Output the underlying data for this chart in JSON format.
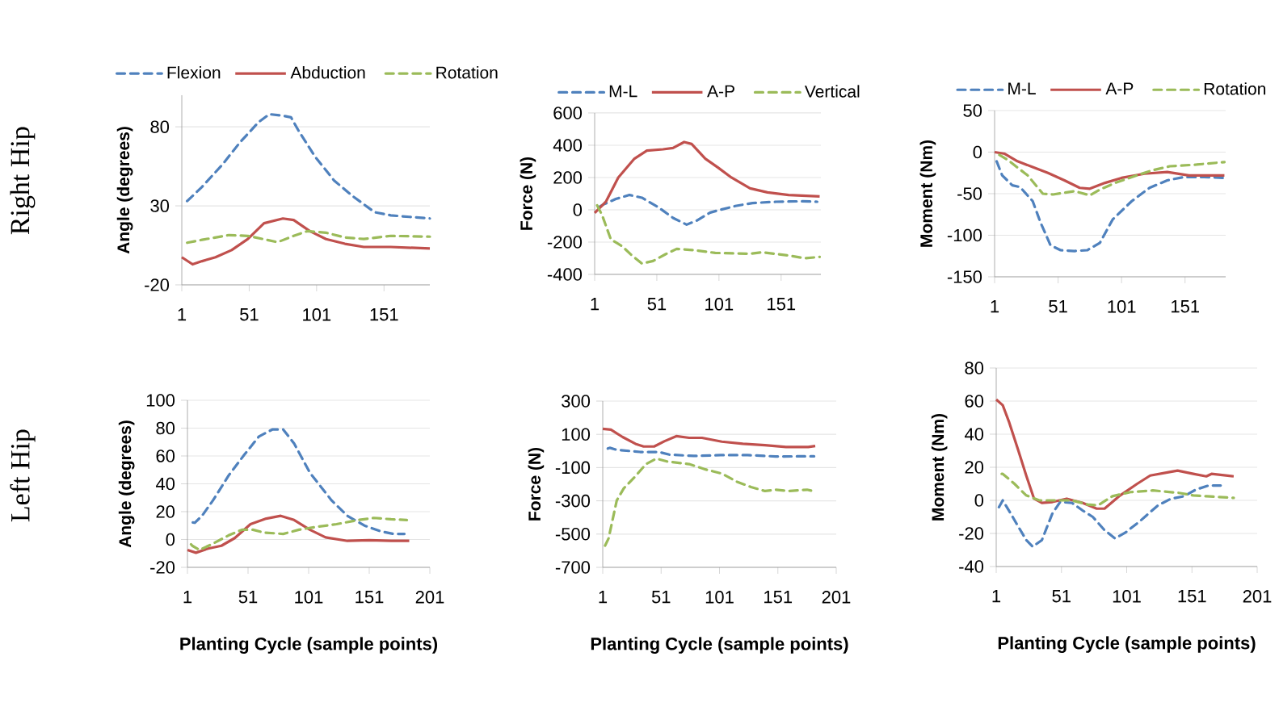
{
  "chart_data": [
    {
      "type": "line",
      "ylabel": "Angle (degrees)",
      "annotations": [
        "Right Hip"
      ],
      "xlim": [
        1,
        185
      ],
      "xticks": [
        1,
        51,
        101,
        151
      ],
      "ylim": [
        -20,
        100
      ],
      "yticks": [
        -20,
        30,
        80
      ],
      "grid": "y",
      "legend": "top",
      "series": [
        {
          "name": "Flexion",
          "color": "#4f81bd",
          "line_style": "dashed",
          "x": [
            1,
            5,
            16,
            31,
            44,
            58,
            66,
            76,
            82,
            88,
            100,
            114,
            128,
            144,
            156,
            170,
            185
          ],
          "values": [
            34,
            33,
            42,
            56,
            70,
            83,
            88,
            87,
            86,
            77,
            61,
            46,
            36,
            26,
            24,
            23,
            22
          ]
        },
        {
          "name": "Abduction",
          "color": "#c0504d",
          "line_style": "solid",
          "x": [
            1,
            9,
            16,
            26,
            38,
            50,
            62,
            76,
            84,
            96,
            108,
            122,
            136,
            156,
            185
          ],
          "values": [
            -2.5,
            -7,
            -5,
            -2.5,
            2,
            9,
            19,
            22,
            21,
            14,
            9,
            6,
            4,
            4,
            3
          ]
        },
        {
          "name": "Rotation",
          "color": "#9bbb59",
          "line_style": "dashed",
          "x": [
            1,
            16,
            36,
            50,
            64,
            72,
            84,
            94,
            108,
            122,
            136,
            156,
            185
          ],
          "values": [
            6,
            8.5,
            11.5,
            11,
            8.5,
            7,
            11,
            14,
            13,
            10,
            9,
            11,
            10.5
          ]
        }
      ]
    },
    {
      "type": "line",
      "ylabel": "Force (N)",
      "xlim": [
        1,
        183
      ],
      "xticks": [
        1,
        51,
        101,
        151
      ],
      "ylim": [
        -400,
        600
      ],
      "yticks": [
        -400,
        -200,
        0,
        200,
        400,
        600
      ],
      "grid": "y",
      "legend": "top",
      "series": [
        {
          "name": "M-L",
          "color": "#4f81bd",
          "line_style": "dashed",
          "x": [
            1,
            8,
            18,
            29,
            39,
            52,
            64,
            75,
            83,
            94,
            102,
            115,
            128,
            147,
            168,
            180
          ],
          "values": [
            0,
            33,
            67,
            92,
            75,
            17,
            -50,
            -92,
            -67,
            -17,
            0,
            25,
            42,
            50,
            53,
            50
          ]
        },
        {
          "name": "A-P",
          "color": "#c0504d",
          "line_style": "solid",
          "x": [
            1,
            10,
            20,
            33,
            43,
            56,
            64,
            73,
            79,
            90,
            100,
            111,
            126,
            140,
            157,
            182
          ],
          "values": [
            -20,
            50,
            200,
            317,
            367,
            375,
            383,
            420,
            408,
            317,
            263,
            200,
            133,
            108,
            92,
            83
          ]
        },
        {
          "name": "Vertical",
          "color": "#9bbb59",
          "line_style": "dashed",
          "x": [
            1,
            7,
            14,
            23,
            31,
            39,
            48,
            58,
            67,
            81,
            98,
            126,
            136,
            157,
            170,
            182
          ],
          "values": [
            58,
            -33,
            -183,
            -225,
            -283,
            -333,
            -317,
            -275,
            -242,
            -250,
            -267,
            -272,
            -263,
            -283,
            -300,
            -292
          ]
        }
      ]
    },
    {
      "type": "line",
      "ylabel": "Moment (Nm)",
      "xlim": [
        1,
        183
      ],
      "xticks": [
        1,
        51,
        101,
        151
      ],
      "ylim": [
        -150,
        50
      ],
      "yticks": [
        -150,
        -100,
        -50,
        0,
        50
      ],
      "grid": "y",
      "legend": "top",
      "series": [
        {
          "name": "M-L",
          "color": "#4f81bd",
          "line_style": "dashed",
          "x": [
            1,
            7,
            15,
            21,
            31,
            37,
            45,
            53,
            64,
            74,
            84,
            94,
            109,
            123,
            137,
            150,
            166,
            182
          ],
          "values": [
            -5,
            -28,
            -40,
            -42,
            -59,
            -84,
            -112,
            -118,
            -119,
            -118,
            -109,
            -81,
            -59,
            -43,
            -34,
            -30,
            -30,
            -31
          ]
        },
        {
          "name": "A-P",
          "color": "#c0504d",
          "line_style": "solid",
          "x": [
            1,
            9,
            19,
            31,
            43,
            56,
            68,
            76,
            88,
            101,
            119,
            137,
            154,
            182
          ],
          "values": [
            0,
            -2,
            -11,
            -18,
            -25,
            -34,
            -43,
            -44,
            -37,
            -31,
            -26,
            -24,
            -28,
            -28
          ]
        },
        {
          "name": "Rotation",
          "color": "#9bbb59",
          "line_style": "dashed",
          "x": [
            1,
            11,
            27,
            39,
            47,
            64,
            76,
            84,
            96,
            113,
            125,
            139,
            160,
            182
          ],
          "values": [
            0,
            -9,
            -28,
            -50,
            -51,
            -47,
            -52,
            -45,
            -37,
            -28,
            -22,
            -17,
            -15,
            -12
          ]
        }
      ]
    },
    {
      "type": "line",
      "ylabel": "Angle (degrees)",
      "xlabel": "Planting Cycle (sample points)",
      "annotations": [
        "Left Hip"
      ],
      "xlim": [
        1,
        201
      ],
      "xticks": [
        1,
        51,
        101,
        151,
        201
      ],
      "ylim": [
        -20,
        100
      ],
      "yticks": [
        -20,
        0,
        20,
        40,
        60,
        80,
        100
      ],
      "grid": "y",
      "series": [
        {
          "color": "#4f81bd",
          "line_style": "dashed",
          "x": [
            1,
            7,
            13,
            22,
            35,
            48,
            60,
            71,
            80,
            89,
            102,
            120,
            133,
            147,
            160,
            171,
            180
          ],
          "values": [
            13,
            12,
            17,
            28,
            46,
            61,
            74,
            79,
            79,
            69,
            48,
            28,
            17,
            10,
            6,
            4,
            4
          ]
        },
        {
          "color": "#c0504d",
          "line_style": "solid",
          "x": [
            1,
            8,
            18,
            29,
            40,
            53,
            66,
            78,
            89,
            102,
            115,
            133,
            151,
            169,
            184
          ],
          "values": [
            -7.5,
            -9.5,
            -6.5,
            -4.5,
            1,
            11,
            15,
            17,
            14,
            7,
            1.5,
            -1,
            -0.5,
            -1,
            -1
          ]
        },
        {
          "color": "#9bbb59",
          "line_style": "dashed",
          "x": [
            1,
            5,
            11,
            22,
            35,
            46,
            55,
            64,
            80,
            93,
            107,
            124,
            142,
            155,
            169,
            182
          ],
          "values": [
            -0.5,
            -4.5,
            -7.5,
            -3,
            3,
            7,
            7,
            5,
            4,
            7,
            9,
            11,
            14,
            15.5,
            14.5,
            14
          ]
        }
      ]
    },
    {
      "type": "line",
      "ylabel": "Force (N)",
      "xlabel": "Planting Cycle (sample points)",
      "xlim": [
        1,
        201
      ],
      "xticks": [
        1,
        51,
        101,
        151,
        201
      ],
      "ylim": [
        -700,
        300
      ],
      "yticks": [
        -700,
        -500,
        -300,
        -100,
        100,
        300
      ],
      "grid": "y",
      "series": [
        {
          "color": "#4f81bd",
          "line_style": "dashed",
          "x": [
            1,
            7,
            13,
            33,
            49,
            58,
            79,
            102,
            125,
            149,
            182
          ],
          "values": [
            2,
            19,
            7,
            -6,
            -6,
            -22,
            -30,
            -25,
            -25,
            -33,
            -32
          ]
        },
        {
          "color": "#c0504d",
          "line_style": "solid",
          "x": [
            1,
            8,
            18,
            29,
            36,
            45,
            54,
            64,
            75,
            86,
            103,
            121,
            140,
            158,
            177,
            183
          ],
          "values": [
            133,
            128,
            84,
            43,
            27,
            27,
            59,
            89,
            79,
            79,
            56,
            43,
            35,
            24,
            24,
            30
          ]
        },
        {
          "color": "#9bbb59",
          "line_style": "dashed",
          "x": [
            1,
            6,
            13,
            19,
            29,
            38,
            47,
            56,
            65,
            75,
            89,
            103,
            116,
            128,
            140,
            149,
            160,
            176,
            181
          ],
          "values": [
            -599,
            -526,
            -298,
            -225,
            -152,
            -79,
            -46,
            -63,
            -71,
            -79,
            -111,
            -136,
            -185,
            -217,
            -241,
            -233,
            -241,
            -233,
            -241
          ]
        }
      ]
    },
    {
      "type": "line",
      "ylabel": "Moment (Nm)",
      "xlabel": "Planting Cycle (sample points)",
      "xlim": [
        1,
        201
      ],
      "xticks": [
        1,
        51,
        101,
        151,
        201
      ],
      "ylim": [
        -40,
        80
      ],
      "yticks": [
        -40,
        -20,
        0,
        20,
        40,
        60,
        80
      ],
      "grid": "y",
      "series": [
        {
          "color": "#4f81bd",
          "line_style": "dashed",
          "x": [
            1,
            6,
            11,
            18,
            24,
            29,
            36,
            44,
            50,
            59,
            67,
            75,
            84,
            92,
            100,
            112,
            125,
            135,
            145,
            154,
            164,
            173
          ],
          "values": [
            -7,
            0,
            -6.5,
            -16,
            -24,
            -28,
            -24,
            -8,
            -1,
            -1.5,
            -6,
            -10,
            -18,
            -23,
            -19.5,
            -12,
            -3,
            1,
            2.5,
            6.5,
            9,
            9
          ]
        },
        {
          "color": "#c0504d",
          "line_style": "solid",
          "x": [
            1,
            6,
            11,
            18,
            24,
            30,
            36,
            44,
            55,
            67,
            78,
            84,
            96,
            109,
            119,
            133,
            140,
            152,
            162,
            166,
            183
          ],
          "values": [
            61,
            57.5,
            47,
            30,
            15,
            1,
            -1.5,
            -1,
            1,
            -1.5,
            -5,
            -5,
            3,
            10,
            15,
            17,
            18,
            16,
            14.5,
            16,
            14.5
          ]
        },
        {
          "color": "#9bbb59",
          "line_style": "dashed",
          "x": [
            1,
            6,
            15,
            24,
            34,
            48,
            59,
            71,
            79,
            90,
            104,
            121,
            141,
            152,
            162,
            183
          ],
          "values": [
            16,
            16,
            10,
            3,
            0,
            0,
            0,
            -2.5,
            -3,
            2.5,
            5,
            6,
            4.5,
            3,
            2.5,
            1.5
          ]
        }
      ]
    }
  ]
}
